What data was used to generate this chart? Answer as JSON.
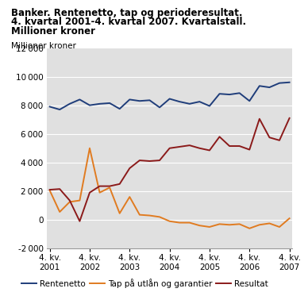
{
  "title_lines": [
    "Banker. Rentenetto, tap og perioderesultat.",
    "4. kvartal 2001-4. kvartal 2007. Kvartalstall.",
    "Millioner kroner"
  ],
  "ylabel_top": "Millioner kroner",
  "ylim": [
    -2000,
    12000
  ],
  "yticks": [
    -2000,
    0,
    2000,
    4000,
    6000,
    8000,
    10000,
    12000
  ],
  "xtick_labels": [
    "4. kv.\n2001",
    "4. kv.\n2002",
    "4. kv.\n2003",
    "4. kv.\n2004",
    "4. kv.\n2005",
    "4. kv.\n2006",
    "4. kv.\n2007"
  ],
  "xtick_positions": [
    0,
    4,
    8,
    12,
    16,
    20,
    24
  ],
  "n_points": 25,
  "rentenetto": [
    7900,
    7700,
    8100,
    8400,
    8000,
    8100,
    8150,
    7750,
    8400,
    8300,
    8350,
    7850,
    8450,
    8250,
    8100,
    8250,
    7950,
    8800,
    8750,
    8850,
    8300,
    9350,
    9250,
    9550,
    9600
  ],
  "tap": [
    2050,
    550,
    1250,
    1350,
    5000,
    1900,
    2250,
    450,
    1600,
    350,
    300,
    200,
    -100,
    -200,
    -200,
    -400,
    -500,
    -300,
    -350,
    -300,
    -600,
    -350,
    -250,
    -500,
    100
  ],
  "resultat": [
    2100,
    2150,
    1350,
    -100,
    1900,
    2350,
    2350,
    2500,
    3600,
    4150,
    4100,
    4150,
    5000,
    5100,
    5200,
    5000,
    4850,
    5800,
    5150,
    5150,
    4900,
    7050,
    5750,
    5550,
    7100
  ],
  "rentenetto_color": "#1f3d7a",
  "tap_color": "#e07b20",
  "resultat_color": "#8b1a1a",
  "legend_labels": [
    "Rentenetto",
    "Tap på utlån og garantier",
    "Resultat"
  ],
  "background_color": "#e0e0e0",
  "grid_color": "#ffffff",
  "title_fontsize": 8.5,
  "tick_fontsize": 7.5,
  "legend_fontsize": 7.5
}
